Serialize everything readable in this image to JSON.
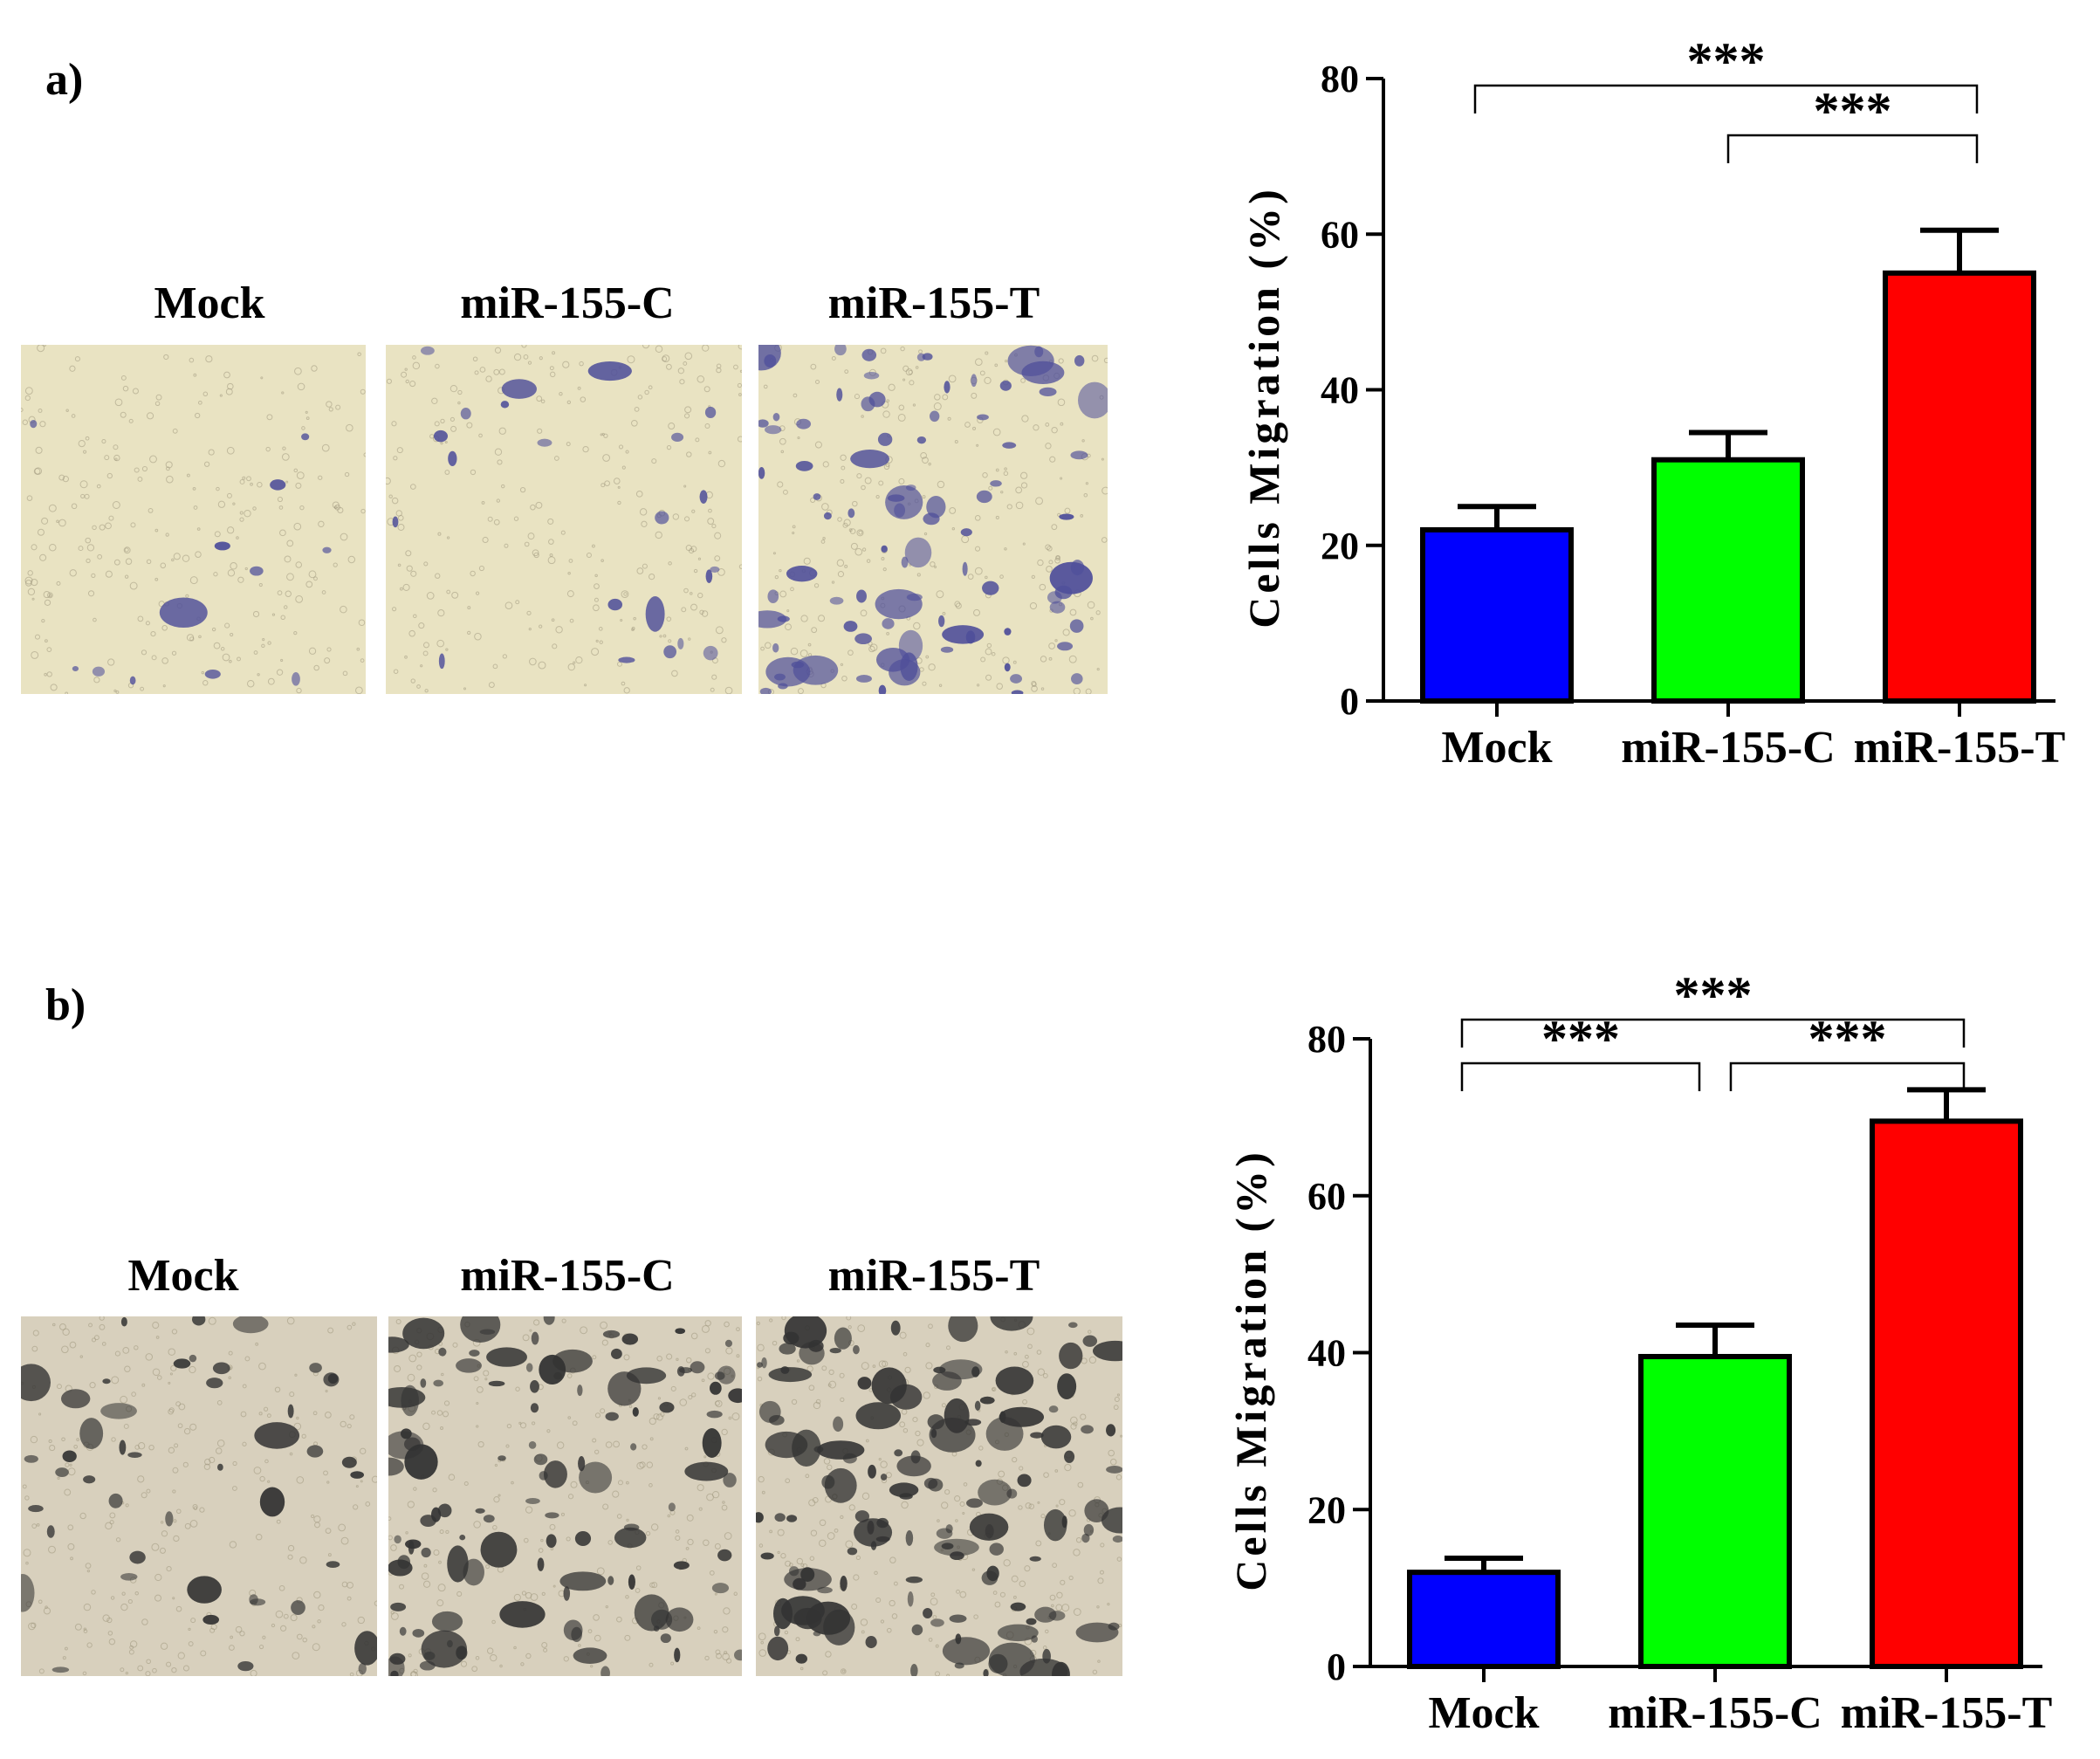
{
  "panel_a": {
    "label": "a)",
    "image_labels": [
      "Mock",
      "miR-155-C",
      "miR-155-T"
    ],
    "stain_color": "#4f4f9a",
    "background_color": "#e9e3c2"
  },
  "panel_b": {
    "label": "b)",
    "image_labels": [
      "Mock",
      "miR-155-C",
      "miR-155-T"
    ],
    "stain_color": "#333333",
    "background_color": "#d8d0bd"
  },
  "chart_data": [
    {
      "type": "bar",
      "panel": "a",
      "categories": [
        "Mock",
        "miR-155-C",
        "miR-155-T"
      ],
      "values": [
        22,
        31,
        55
      ],
      "errors": [
        3,
        3.5,
        5.5
      ],
      "colors": [
        "#0000ff",
        "#00ff00",
        "#ff0000"
      ],
      "ylabel": "Cells Migration (%)",
      "ylim": [
        0,
        80
      ],
      "yticks": [
        0,
        20,
        40,
        60,
        80
      ],
      "significance": [
        {
          "from": 0,
          "to": 2,
          "label": "***",
          "level": 1
        },
        {
          "from": 1,
          "to": 2,
          "label": "***",
          "level": 0
        }
      ]
    },
    {
      "type": "bar",
      "panel": "b",
      "categories": [
        "Mock",
        "miR-155-C",
        "miR-155-T"
      ],
      "values": [
        12,
        39.5,
        69.5
      ],
      "errors": [
        1.8,
        4,
        4
      ],
      "colors": [
        "#0000ff",
        "#00ff00",
        "#ff0000"
      ],
      "ylabel": "Cells Migration (%)",
      "ylim": [
        0,
        80
      ],
      "yticks": [
        0,
        20,
        40,
        60,
        80
      ],
      "significance": [
        {
          "from": 0,
          "to": 2,
          "label": "***",
          "level": 1
        },
        {
          "from": 0,
          "to": 1,
          "label": "***",
          "level": 0
        },
        {
          "from": 1,
          "to": 2,
          "label": "***",
          "level": 0
        }
      ]
    }
  ]
}
